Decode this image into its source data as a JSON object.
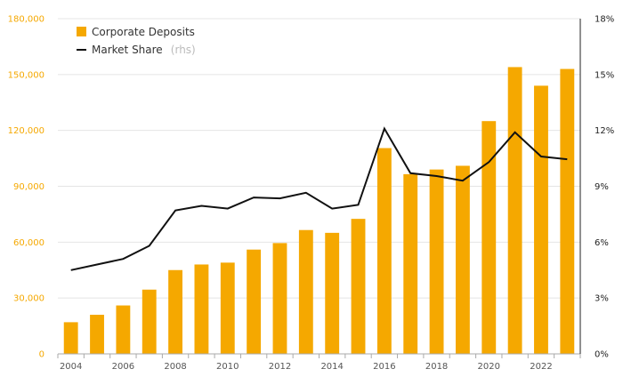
{
  "chart_data": {
    "type": "bar",
    "x": [
      2004,
      2005,
      2006,
      2007,
      2008,
      2009,
      2010,
      2011,
      2012,
      2013,
      2014,
      2015,
      2016,
      2017,
      2018,
      2019,
      2020,
      2021,
      2022,
      2023
    ],
    "x_tick_labels": [
      "2004",
      "2006",
      "2008",
      "2010",
      "2012",
      "2014",
      "2016",
      "2018",
      "2020",
      "2022"
    ],
    "series": [
      {
        "name": "Corporate Deposits",
        "type": "bar",
        "axis": "left",
        "color": "#F5A800",
        "values": [
          17000,
          21000,
          26000,
          34500,
          45000,
          48000,
          49000,
          56000,
          59500,
          66500,
          65000,
          72500,
          110500,
          96500,
          99000,
          101000,
          125000,
          154000,
          144000,
          153000
        ]
      },
      {
        "name": "Market Share",
        "name_note": "(rhs)",
        "type": "line",
        "axis": "right",
        "color": "#111111",
        "values": [
          4.5,
          4.8,
          5.1,
          5.8,
          7.7,
          7.95,
          7.8,
          8.4,
          8.35,
          8.65,
          7.8,
          8.0,
          12.1,
          9.7,
          9.55,
          9.3,
          10.3,
          11.9,
          10.6,
          10.45
        ]
      }
    ],
    "y_left": {
      "ylim": [
        0,
        180000
      ],
      "ticks": [
        "0",
        "30,000",
        "60,000",
        "90,000",
        "120,000",
        "150,000",
        "180,000"
      ],
      "color": "#F5A800"
    },
    "y_right": {
      "ylim": [
        0,
        18
      ],
      "ticks": [
        "0%",
        "3%",
        "6%",
        "9%",
        "12%",
        "15%",
        "18%"
      ],
      "color": "#222222"
    },
    "grid": true,
    "legend": {
      "position": "top-left",
      "items": [
        "Corporate Deposits",
        "Market Share"
      ],
      "note": "(rhs)"
    }
  }
}
